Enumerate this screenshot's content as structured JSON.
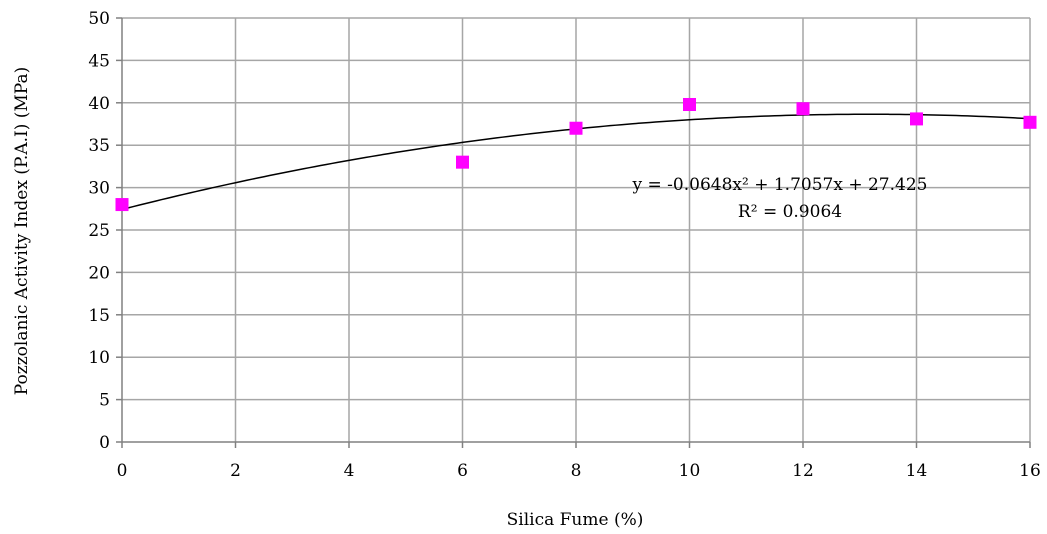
{
  "chart_data": {
    "type": "scatter",
    "title": "",
    "xlabel": "Silica Fume (%)",
    "ylabel": "Pozzolanic Activity Index (P.A.I)  (MPa)",
    "xlim": [
      0,
      16
    ],
    "ylim": [
      0,
      50
    ],
    "x_ticks": [
      "0",
      "2",
      "4",
      "6",
      "8",
      "10",
      "12",
      "14",
      "16"
    ],
    "y_ticks": [
      "0",
      "5",
      "10",
      "15",
      "20",
      "25",
      "30",
      "35",
      "40",
      "45",
      "50"
    ],
    "grid": true,
    "marker_color": "#ff00ff",
    "trendline_color": "#000000",
    "series": [
      {
        "points": [
          {
            "x": 0,
            "y": 28
          },
          {
            "x": 6,
            "y": 33
          },
          {
            "x": 8,
            "y": 37
          },
          {
            "x": 10,
            "y": 39.8
          },
          {
            "x": 12,
            "y": 39.3
          },
          {
            "x": 14,
            "y": 38.1
          },
          {
            "x": 16,
            "y": 37.7
          }
        ]
      }
    ],
    "trendline": {
      "type": "polynomial",
      "coefficients": [
        -0.0648,
        1.7057,
        27.425
      ],
      "equation_text": "y = -0.0648x² + 1.7057x + 27.425",
      "r2_text": "R² = 0.9064"
    }
  }
}
